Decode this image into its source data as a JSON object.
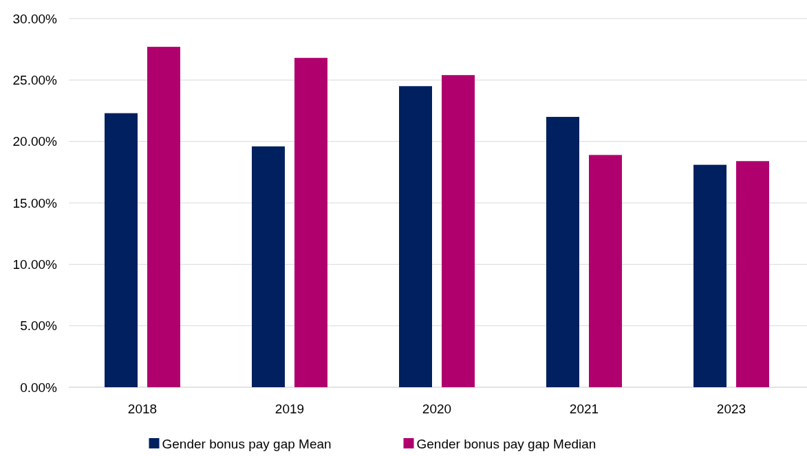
{
  "chart_data": {
    "type": "bar",
    "categories": [
      "2018",
      "2019",
      "2020",
      "2021",
      "2023"
    ],
    "series": [
      {
        "name": "Gender bonus pay gap Mean",
        "color": "#002060",
        "values": [
          22.3,
          19.6,
          24.5,
          22.0,
          18.1
        ]
      },
      {
        "name": "Gender bonus pay gap Median",
        "color": "#b0006e",
        "values": [
          27.7,
          26.8,
          25.4,
          18.9,
          18.4
        ]
      }
    ],
    "ylim": [
      0,
      30
    ],
    "yticks": [
      {
        "value": 0,
        "label": "0.00%"
      },
      {
        "value": 5,
        "label": "5.00%"
      },
      {
        "value": 10,
        "label": "10.00%"
      },
      {
        "value": 15,
        "label": "15.00%"
      },
      {
        "value": 20,
        "label": "20.00%"
      },
      {
        "value": 25,
        "label": "25.00%"
      },
      {
        "value": 30,
        "label": "30.00%"
      }
    ],
    "grid": "y",
    "legend": "bottom"
  }
}
